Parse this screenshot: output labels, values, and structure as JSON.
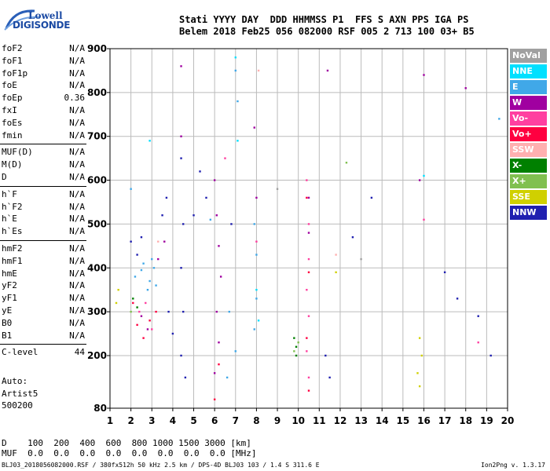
{
  "logo": {
    "top": "Lowell",
    "bottom": "DIGISONDE"
  },
  "header": {
    "line1": "Stati YYYY DAY  DDD HHMMSS P1  FFS S AXN PPS IGA PS",
    "line2": "Belem 2018 Feb25 056 082000 RSF 005 2 713 100 03+ B5"
  },
  "params": {
    "group1": [
      {
        "name": "foF2",
        "value": "N/A"
      },
      {
        "name": "foF1",
        "value": "N/A"
      },
      {
        "name": "foF1p",
        "value": "N/A"
      },
      {
        "name": "foE",
        "value": "N/A"
      },
      {
        "name": "foEp",
        "value": "0.36"
      },
      {
        "name": "fxI",
        "value": "N/A"
      },
      {
        "name": "foEs",
        "value": "N/A"
      },
      {
        "name": "fmin",
        "value": "N/A"
      }
    ],
    "group2": [
      {
        "name": "MUF(D)",
        "value": "N/A"
      },
      {
        "name": "M(D)",
        "value": "N/A"
      },
      {
        "name": "D",
        "value": "N/A"
      }
    ],
    "group3": [
      {
        "name": "h`F",
        "value": "N/A"
      },
      {
        "name": "h`F2",
        "value": "N/A"
      },
      {
        "name": "h`E",
        "value": "N/A"
      },
      {
        "name": "h`Es",
        "value": "N/A"
      }
    ],
    "group4": [
      {
        "name": "hmF2",
        "value": "N/A"
      },
      {
        "name": "hmF1",
        "value": "N/A"
      },
      {
        "name": "hmE",
        "value": "N/A"
      },
      {
        "name": "yF2",
        "value": "N/A"
      },
      {
        "name": "yF1",
        "value": "N/A"
      },
      {
        "name": "yE",
        "value": "N/A"
      },
      {
        "name": "B0",
        "value": "N/A"
      },
      {
        "name": "B1",
        "value": "N/A"
      }
    ],
    "group5": [
      {
        "name": "C-level",
        "value": "44"
      }
    ]
  },
  "auto": {
    "line1": "Auto:",
    "line2": "Artist5",
    "line3": "500200"
  },
  "footer": {
    "line1": "D    100  200  400  600  800 1000 1500 3000 [km]",
    "line2": "MUF  0.0  0.0  0.0  0.0  0.0  0.0  0.0  0.0 [MHz]",
    "file": "BLJ03_2018056082000.RSF / 380fx512h 50 kHz 2.5 km / DPS-4D BLJ03 103 / 1.4 S 311.6 E",
    "version": "Ion2Png v. 1.3.17"
  },
  "legend": [
    {
      "label": "NoVal",
      "color": "#a0a0a0"
    },
    {
      "label": "NNE",
      "color": "#00e0ff"
    },
    {
      "label": "E",
      "color": "#40a8e8"
    },
    {
      "label": "W",
      "color": "#a000a0"
    },
    {
      "label": "Vo-",
      "color": "#ff40a0"
    },
    {
      "label": "Vo+",
      "color": "#ff0040"
    },
    {
      "label": "SSW",
      "color": "#ffb0b0"
    },
    {
      "label": "X-",
      "color": "#008000"
    },
    {
      "label": "X+",
      "color": "#80c050"
    },
    {
      "label": "SSE",
      "color": "#d0d000"
    },
    {
      "label": "NNW",
      "color": "#2020b0"
    }
  ],
  "chart_data": {
    "type": "scatter",
    "xlim": [
      1,
      20
    ],
    "ylim": [
      80,
      900
    ],
    "x_ticks": [
      1,
      2,
      3,
      4,
      5,
      6,
      7,
      8,
      9,
      10,
      11,
      12,
      13,
      14,
      15,
      16,
      17,
      18,
      19,
      20
    ],
    "y_ticks": [
      80,
      200,
      300,
      400,
      500,
      600,
      700,
      800,
      900
    ],
    "grid": true,
    "legend_position": "right",
    "series": [
      {
        "name": "E",
        "color": "#40a8e8",
        "points": [
          [
            2.2,
            380
          ],
          [
            2.6,
            410
          ],
          [
            2.8,
            350
          ],
          [
            3.1,
            400
          ],
          [
            2.5,
            395
          ],
          [
            2.9,
            370
          ],
          [
            3.0,
            420
          ],
          [
            3.2,
            360
          ],
          [
            7.0,
            850
          ],
          [
            7.1,
            780
          ],
          [
            7.9,
            500
          ],
          [
            8.0,
            430
          ],
          [
            8.0,
            330
          ],
          [
            7.9,
            260
          ],
          [
            7.0,
            210
          ],
          [
            6.6,
            150
          ],
          [
            19.6,
            740
          ],
          [
            5.8,
            510
          ],
          [
            2.0,
            580
          ],
          [
            6.7,
            300
          ]
        ]
      },
      {
        "name": "W",
        "color": "#a000a0",
        "points": [
          [
            2.5,
            290
          ],
          [
            2.8,
            260
          ],
          [
            3.3,
            420
          ],
          [
            3.6,
            460
          ],
          [
            4.4,
            700
          ],
          [
            6.0,
            600
          ],
          [
            6.1,
            520
          ],
          [
            6.2,
            450
          ],
          [
            6.3,
            380
          ],
          [
            6.1,
            300
          ],
          [
            6.2,
            230
          ],
          [
            6.0,
            160
          ],
          [
            7.9,
            720
          ],
          [
            8.0,
            560
          ],
          [
            10.5,
            560
          ],
          [
            10.5,
            480
          ],
          [
            11.4,
            850
          ],
          [
            16.0,
            840
          ],
          [
            18.0,
            810
          ],
          [
            15.8,
            600
          ],
          [
            4.4,
            860
          ]
        ]
      },
      {
        "name": "Vo-",
        "color": "#ff40a0",
        "points": [
          [
            2.4,
            300
          ],
          [
            2.7,
            320
          ],
          [
            3.0,
            260
          ],
          [
            10.4,
            600
          ],
          [
            10.5,
            500
          ],
          [
            10.5,
            420
          ],
          [
            10.4,
            350
          ],
          [
            10.5,
            290
          ],
          [
            10.4,
            210
          ],
          [
            10.5,
            150
          ],
          [
            8.0,
            460
          ],
          [
            6.5,
            650
          ],
          [
            16.0,
            510
          ],
          [
            18.6,
            230
          ]
        ]
      },
      {
        "name": "Vo+",
        "color": "#ff0040",
        "points": [
          [
            2.3,
            270
          ],
          [
            2.6,
            240
          ],
          [
            2.9,
            280
          ],
          [
            3.2,
            300
          ],
          [
            2.1,
            320
          ],
          [
            10.4,
            560
          ],
          [
            10.5,
            390
          ],
          [
            10.4,
            240
          ],
          [
            10.5,
            120
          ],
          [
            6.2,
            180
          ],
          [
            6.0,
            100
          ]
        ]
      },
      {
        "name": "X-",
        "color": "#008000",
        "points": [
          [
            9.9,
            200
          ],
          [
            9.9,
            220
          ],
          [
            9.8,
            240
          ],
          [
            2.1,
            330
          ],
          [
            2.3,
            310
          ]
        ]
      },
      {
        "name": "X+",
        "color": "#80c050",
        "points": [
          [
            9.8,
            210
          ],
          [
            10.0,
            230
          ],
          [
            12.3,
            640
          ],
          [
            2.0,
            300
          ]
        ]
      },
      {
        "name": "SSE",
        "color": "#d0d000",
        "points": [
          [
            15.8,
            240
          ],
          [
            15.9,
            200
          ],
          [
            15.7,
            160
          ],
          [
            15.8,
            130
          ],
          [
            1.3,
            320
          ],
          [
            1.4,
            350
          ],
          [
            11.8,
            390
          ]
        ]
      },
      {
        "name": "NNW",
        "color": "#2020b0",
        "points": [
          [
            2.0,
            460
          ],
          [
            2.3,
            430
          ],
          [
            2.5,
            470
          ],
          [
            3.5,
            520
          ],
          [
            3.7,
            560
          ],
          [
            4.4,
            650
          ],
          [
            4.5,
            500
          ],
          [
            4.4,
            400
          ],
          [
            4.5,
            300
          ],
          [
            4.4,
            200
          ],
          [
            4.6,
            150
          ],
          [
            5.0,
            520
          ],
          [
            5.3,
            620
          ],
          [
            5.6,
            560
          ],
          [
            11.3,
            200
          ],
          [
            11.5,
            150
          ],
          [
            12.6,
            470
          ],
          [
            13.5,
            560
          ],
          [
            17.0,
            390
          ],
          [
            17.6,
            330
          ],
          [
            18.6,
            290
          ],
          [
            19.2,
            200
          ],
          [
            6.8,
            500
          ],
          [
            3.8,
            300
          ],
          [
            4.0,
            250
          ]
        ]
      },
      {
        "name": "NNE",
        "color": "#00e0ff",
        "points": [
          [
            2.9,
            690
          ],
          [
            7.0,
            880
          ],
          [
            7.1,
            690
          ],
          [
            8.0,
            350
          ],
          [
            8.1,
            280
          ],
          [
            16.0,
            610
          ]
        ]
      },
      {
        "name": "SSW",
        "color": "#ffb0b0",
        "points": [
          [
            3.3,
            460
          ],
          [
            8.1,
            850
          ],
          [
            11.8,
            430
          ]
        ]
      },
      {
        "name": "NoVal",
        "color": "#a0a0a0",
        "points": [
          [
            9.0,
            580
          ],
          [
            13.0,
            420
          ]
        ]
      }
    ]
  }
}
